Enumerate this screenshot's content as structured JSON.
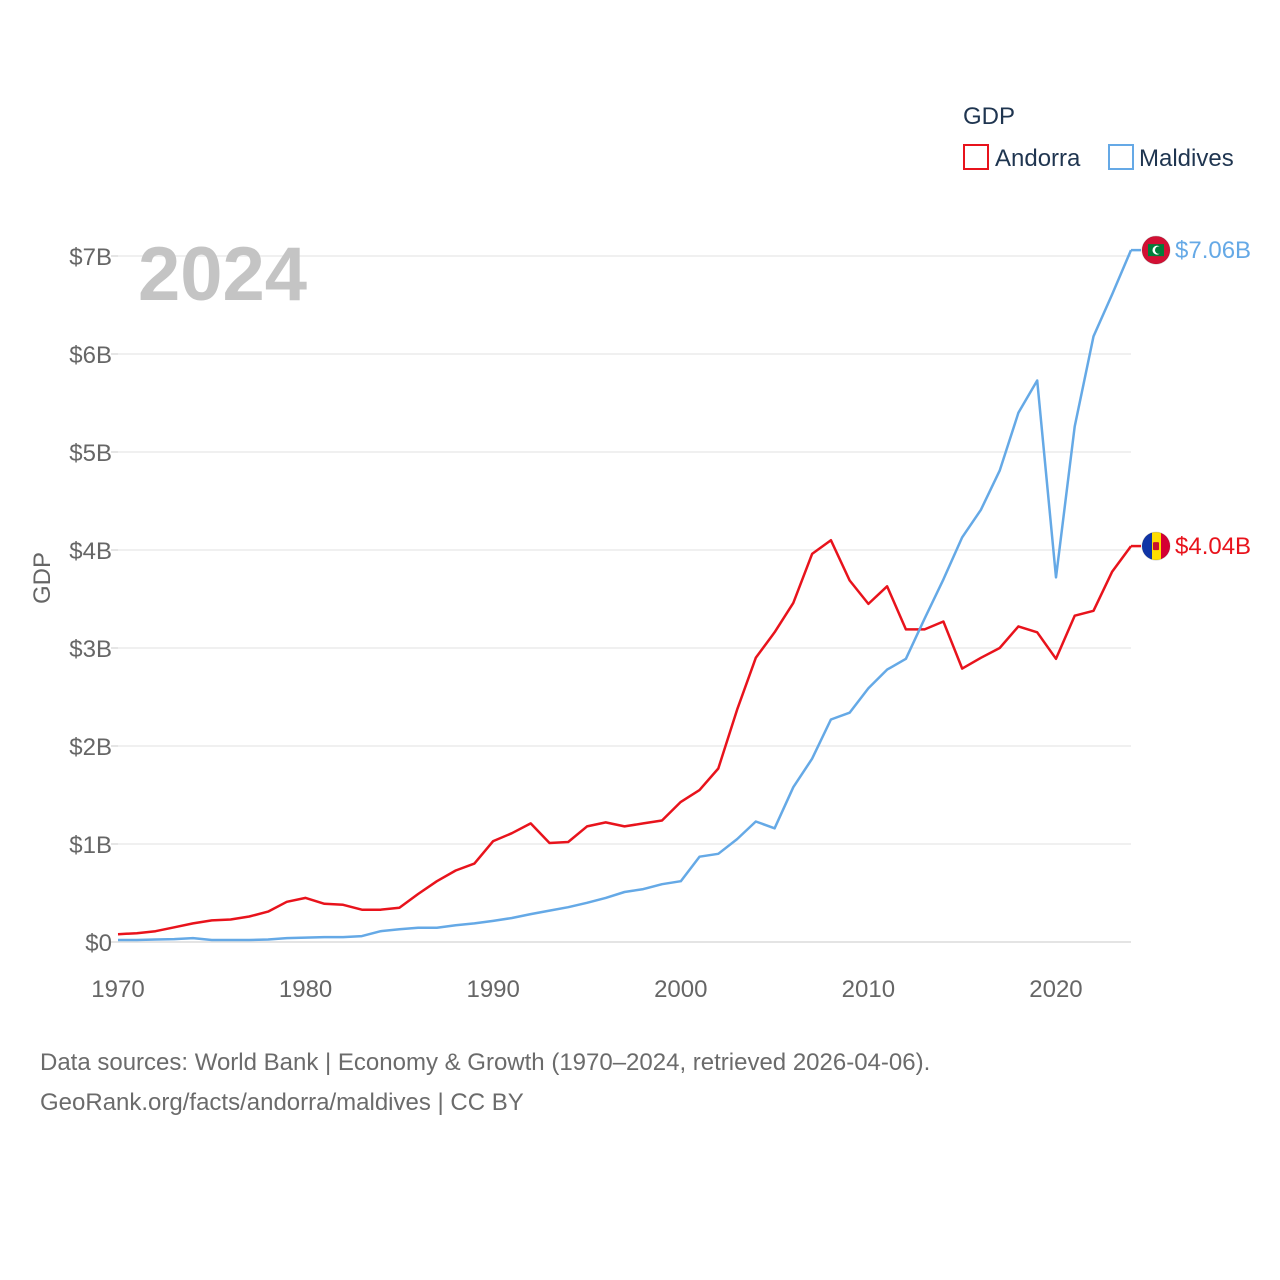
{
  "chart_data": {
    "type": "line",
    "year_label": "2024",
    "ylabel": "GDP",
    "legend_title": "GDP",
    "xlim": [
      1970,
      2024
    ],
    "ylim": [
      0,
      7
    ],
    "x_ticks": [
      "1970",
      "1980",
      "1990",
      "2000",
      "2010",
      "2020"
    ],
    "y_ticks": [
      "$0",
      "$1B",
      "$2B",
      "$3B",
      "$4B",
      "$5B",
      "$6B",
      "$7B"
    ],
    "x": [
      1970,
      1971,
      1972,
      1973,
      1974,
      1975,
      1976,
      1977,
      1978,
      1979,
      1980,
      1981,
      1982,
      1983,
      1984,
      1985,
      1986,
      1987,
      1988,
      1989,
      1990,
      1991,
      1992,
      1993,
      1994,
      1995,
      1996,
      1997,
      1998,
      1999,
      2000,
      2001,
      2002,
      2003,
      2004,
      2005,
      2006,
      2007,
      2008,
      2009,
      2010,
      2011,
      2012,
      2013,
      2014,
      2015,
      2016,
      2017,
      2018,
      2019,
      2020,
      2021,
      2022,
      2023,
      2024
    ],
    "series": [
      {
        "name": "Andorra",
        "color": "#e8131c",
        "end_label": "$4.04B",
        "flag": "andorra-flag",
        "values": [
          0.08,
          0.09,
          0.11,
          0.15,
          0.19,
          0.22,
          0.23,
          0.26,
          0.31,
          0.41,
          0.45,
          0.39,
          0.38,
          0.33,
          0.33,
          0.35,
          0.49,
          0.62,
          0.73,
          0.8,
          1.03,
          1.11,
          1.21,
          1.01,
          1.02,
          1.18,
          1.22,
          1.18,
          1.21,
          1.24,
          1.43,
          1.55,
          1.77,
          2.37,
          2.9,
          3.16,
          3.46,
          3.96,
          4.1,
          3.69,
          3.45,
          3.63,
          3.19,
          3.19,
          3.27,
          2.79,
          2.9,
          3.0,
          3.22,
          3.16,
          2.89,
          3.33,
          3.38,
          3.78,
          4.04
        ]
      },
      {
        "name": "Maldives",
        "color": "#65a9e6",
        "end_label": "$7.06B",
        "flag": "maldives-flag",
        "values": [
          0.02,
          0.02,
          0.025,
          0.03,
          0.04,
          0.02,
          0.02,
          0.02,
          0.025,
          0.04,
          0.045,
          0.05,
          0.05,
          0.06,
          0.11,
          0.13,
          0.145,
          0.145,
          0.17,
          0.19,
          0.215,
          0.245,
          0.285,
          0.32,
          0.355,
          0.4,
          0.45,
          0.51,
          0.54,
          0.59,
          0.62,
          0.87,
          0.9,
          1.05,
          1.23,
          1.16,
          1.58,
          1.87,
          2.27,
          2.34,
          2.59,
          2.78,
          2.89,
          3.3,
          3.7,
          4.13,
          4.41,
          4.81,
          5.4,
          5.73,
          3.72,
          5.26,
          6.18,
          6.61,
          7.06
        ]
      }
    ]
  },
  "source": {
    "line1": "Data sources: World Bank | Economy & Growth (1970–2024, retrieved 2026-04-06).",
    "line2": "GeoRank.org/facts/andorra/maldives | CC BY"
  }
}
